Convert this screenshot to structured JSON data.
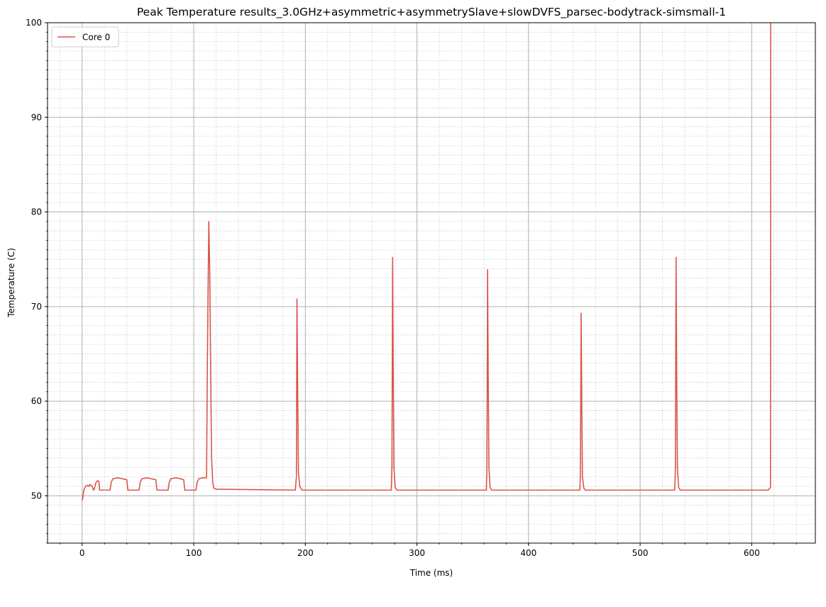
{
  "chart_data": {
    "type": "line",
    "title": "Peak Temperature results_3.0GHz+asymmetric+asymmetrySlave+slowDVFS_parsec-bodytrack-simsmall-1",
    "xlabel": "Time (ms)",
    "ylabel": "Temperature (C)",
    "xlim": [
      -31,
      657
    ],
    "ylim": [
      45,
      100
    ],
    "x_major_ticks": [
      0,
      100,
      200,
      300,
      400,
      500,
      600
    ],
    "x_minor_step": 20,
    "y_major_ticks": [
      50,
      60,
      70,
      80,
      90,
      100
    ],
    "y_minor_step": 1,
    "grid": {
      "major": true,
      "minor": true
    },
    "legend_position": "top-left",
    "series": [
      {
        "name": "Core 0",
        "color": "#d9564a",
        "points": [
          [
            0,
            49.5
          ],
          [
            0.6,
            49.8
          ],
          [
            1.5,
            50.6
          ],
          [
            3,
            51.0
          ],
          [
            4.5,
            51.1
          ],
          [
            6,
            51.0
          ],
          [
            7,
            51.2
          ],
          [
            8,
            51.1
          ],
          [
            9,
            51.0
          ],
          [
            10,
            50.6
          ],
          [
            11,
            50.7
          ],
          [
            12,
            51.3
          ],
          [
            13,
            51.5
          ],
          [
            14,
            51.6
          ],
          [
            15,
            51.5
          ],
          [
            15.6,
            50.6
          ],
          [
            25,
            50.6
          ],
          [
            26,
            51.4
          ],
          [
            27.5,
            51.8
          ],
          [
            32,
            51.9
          ],
          [
            36,
            51.8
          ],
          [
            40,
            51.7
          ],
          [
            41,
            50.6
          ],
          [
            51,
            50.6
          ],
          [
            52,
            51.4
          ],
          [
            53.5,
            51.8
          ],
          [
            58,
            51.9
          ],
          [
            62,
            51.8
          ],
          [
            66,
            51.7
          ],
          [
            67,
            50.6
          ],
          [
            77,
            50.6
          ],
          [
            78,
            51.4
          ],
          [
            79.5,
            51.8
          ],
          [
            84,
            51.9
          ],
          [
            88,
            51.8
          ],
          [
            91,
            51.7
          ],
          [
            92,
            50.6
          ],
          [
            102,
            50.6
          ],
          [
            103,
            51.4
          ],
          [
            104.5,
            51.8
          ],
          [
            108,
            51.9
          ],
          [
            111.5,
            51.9
          ],
          [
            112.2,
            64
          ],
          [
            112.8,
            71
          ],
          [
            113.5,
            79.0
          ],
          [
            114.3,
            74
          ],
          [
            115.2,
            63
          ],
          [
            116,
            54
          ],
          [
            117,
            51.5
          ],
          [
            118,
            50.8
          ],
          [
            120,
            50.7
          ],
          [
            191,
            50.6
          ],
          [
            192,
            52
          ],
          [
            192.5,
            70.8
          ],
          [
            193.2,
            60
          ],
          [
            193.8,
            52.5
          ],
          [
            195,
            51.0
          ],
          [
            197,
            50.6
          ],
          [
            277,
            50.6
          ],
          [
            277.6,
            53
          ],
          [
            278.2,
            75.2
          ],
          [
            278.8,
            62
          ],
          [
            279.4,
            53
          ],
          [
            280.5,
            50.9
          ],
          [
            282,
            50.6
          ],
          [
            362.2,
            50.6
          ],
          [
            362.7,
            53
          ],
          [
            363.3,
            73.9
          ],
          [
            363.9,
            62
          ],
          [
            364.5,
            53
          ],
          [
            365.5,
            50.9
          ],
          [
            367,
            50.6
          ],
          [
            446,
            50.6
          ],
          [
            446.5,
            52.5
          ],
          [
            447.1,
            69.3
          ],
          [
            447.7,
            60
          ],
          [
            448.3,
            52
          ],
          [
            449.5,
            50.8
          ],
          [
            451,
            50.6
          ],
          [
            531,
            50.6
          ],
          [
            531.6,
            53
          ],
          [
            532.2,
            75.2
          ],
          [
            532.8,
            62
          ],
          [
            533.4,
            53
          ],
          [
            534.5,
            50.9
          ],
          [
            536,
            50.6
          ],
          [
            614.5,
            50.6
          ],
          [
            615.5,
            50.7
          ],
          [
            616.8,
            50.9
          ],
          [
            617,
            100
          ]
        ]
      }
    ]
  }
}
